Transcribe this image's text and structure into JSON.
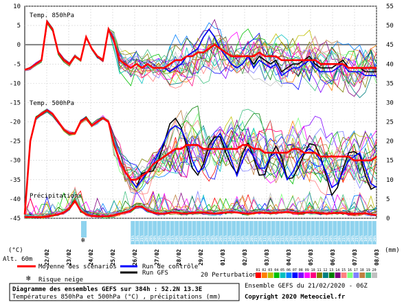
{
  "chart_data": {
    "type": "line",
    "title_line1": "Diagramme des ensembles GEFS sur 384h : 52.2N 13.3E",
    "title_line2": "Températures 850hPa et 500hPa (°C) , précipitations (mm)",
    "credit_run": "Ensemble GEFS du 21/02/2020 - 06Z",
    "copyright": "Copyright 2020 Meteociel.fr",
    "panel_labels": [
      "Temp. 850hPa",
      "Temp. 500hPa",
      "Précipitations"
    ],
    "left_unit": "(°C)",
    "altitude": "Alt. 60m",
    "right_unit": "(mm)",
    "y_left_ticks": [
      "10",
      "5",
      "0",
      "-5",
      "-10",
      "-15",
      "-20",
      "-25",
      "-30",
      "-35",
      "-40",
      "-45"
    ],
    "y_right_ticks": [
      "55",
      "50",
      "45",
      "40",
      "35",
      "30",
      "25",
      "20",
      "15",
      "10",
      "5",
      "0"
    ],
    "x_dates": [
      "22/02",
      "23/02",
      "24/02",
      "25/02",
      "26/02",
      "27/02",
      "28/02",
      "29/02",
      "01/03",
      "02/03",
      "03/03",
      "04/03",
      "05/03",
      "06/03",
      "07/03",
      "08/03"
    ],
    "legend": {
      "mean": "Moyenne des scénarios",
      "control": "Run de contrôle",
      "gfs": "Run GFS",
      "perturb": "20 Perturbations",
      "snow": "Risque neige"
    },
    "perturbation_ids": [
      "01",
      "02",
      "03",
      "04",
      "05",
      "06",
      "07",
      "08",
      "09",
      "10",
      "11",
      "12",
      "13",
      "14",
      "15",
      "16",
      "17",
      "18",
      "19",
      "20"
    ],
    "perturbation_colors": [
      "#ff0000",
      "#ff8000",
      "#c0c000",
      "#00c000",
      "#00c0c0",
      "#0080ff",
      "#0000ff",
      "#8000ff",
      "#ff00ff",
      "#ff0080",
      "#808000",
      "#008080",
      "#008000",
      "#800080",
      "#ff8080",
      "#80ff80",
      "#8080ff",
      "#c08040",
      "#40c080",
      "#c0c0c0"
    ],
    "snow_risk_pct": [
      "11%",
      "16%",
      "21%",
      "26%",
      "26%",
      "26%",
      "26%",
      "21%",
      "26%",
      "21%",
      "26%",
      "26%",
      "21%",
      "21%",
      "21%",
      "26%",
      "21%",
      "16%",
      "26%",
      "26%",
      "26%",
      "21%",
      "16%",
      "26%",
      "21%",
      "26%",
      "16%",
      "26%",
      "21%",
      "26%",
      "11%",
      "26%",
      "26%",
      "21%",
      "21%",
      "26%",
      "26%",
      "21%",
      "16%",
      "26%",
      "26%",
      "26%",
      "21%",
      "26%",
      "21%",
      "26%",
      "21%",
      "26%",
      "21%",
      "26%",
      "26%",
      "21%",
      "26%",
      "16%",
      "26%",
      "26%"
    ],
    "t850_mean": [
      -6.5,
      -6,
      -5,
      -4,
      6,
      4,
      -2,
      -4,
      -5,
      -3,
      -4,
      2,
      -1,
      -3,
      -4,
      4,
      1,
      -4,
      -5,
      -6,
      -5,
      -6,
      -5,
      -6,
      -6,
      -6,
      -5,
      -4,
      -4,
      -3,
      -3,
      -2,
      -2,
      -1,
      0,
      -1,
      -2,
      -3,
      -3,
      -3,
      -3,
      -3,
      -2,
      -3,
      -3,
      -3,
      -4,
      -4,
      -4,
      -4,
      -4,
      -4,
      -4,
      -5,
      -5,
      -5,
      -5,
      -5,
      -6,
      -6,
      -6,
      -6,
      -6,
      -6
    ],
    "t850_control": [
      -6.5,
      -6,
      -5,
      -4,
      6,
      4,
      -2,
      -4,
      -5,
      -3,
      -4,
      2,
      -1,
      -3,
      -4,
      4,
      1,
      -4,
      -5,
      -6,
      -5,
      -6,
      -5,
      -6,
      -6,
      -6,
      -7,
      -6,
      -5,
      -3,
      -2,
      -1,
      2,
      4,
      2,
      -1,
      -3,
      -5,
      -6,
      -5,
      -3,
      -5,
      -3,
      -4,
      -5,
      -4,
      -7,
      -6,
      -5,
      -5,
      -4,
      -3,
      -5,
      -6,
      -6,
      -6,
      -5,
      -4,
      -6,
      -6,
      -6,
      -7,
      -7,
      -7
    ],
    "t500_mean": [
      -44,
      -25,
      -19,
      -18,
      -17,
      -18,
      -20,
      -22,
      -23,
      -23,
      -20,
      -19,
      -21,
      -20,
      -19,
      -20,
      -26,
      -30,
      -33,
      -35,
      -35,
      -34,
      -33,
      -31,
      -30,
      -29,
      -28,
      -27,
      -27,
      -26,
      -26,
      -26,
      -27,
      -27,
      -27,
      -27,
      -27,
      -27,
      -27,
      -26,
      -26,
      -27,
      -27,
      -28,
      -28,
      -28,
      -28,
      -28,
      -27,
      -27,
      -28,
      -28,
      -28,
      -29,
      -29,
      -29,
      -29,
      -29,
      -29,
      -30,
      -30,
      -30,
      -30,
      -29
    ],
    "t500_control": [
      -44,
      -25,
      -19,
      -18,
      -17,
      -18,
      -20,
      -22,
      -23,
      -23,
      -20,
      -19,
      -21,
      -20,
      -19,
      -20,
      -26,
      -30,
      -33,
      -35,
      -37,
      -35,
      -33,
      -31,
      -28,
      -25,
      -22,
      -21,
      -22,
      -25,
      -30,
      -33,
      -32,
      -28,
      -25,
      -23,
      -26,
      -30,
      -34,
      -30,
      -27,
      -29,
      -32,
      -32,
      -29,
      -28,
      -31,
      -35,
      -33,
      -30,
      -28,
      -27,
      -28,
      -30,
      -33,
      -37,
      -36,
      -33,
      -30,
      -29,
      -28,
      -32,
      -36,
      -37
    ],
    "precip_mean": [
      0.3,
      0.3,
      0.3,
      0.3,
      0.5,
      0.7,
      1.0,
      1.5,
      2.5,
      4.5,
      2,
      1,
      0.6,
      0.5,
      0.5,
      0.5,
      0.8,
      1.2,
      1.5,
      2,
      3,
      3,
      2,
      1.5,
      1.2,
      1.2,
      1.4,
      1.5,
      1.3,
      1.2,
      1.4,
      1.5,
      1.5,
      1.3,
      1.2,
      1.3,
      1.5,
      1.6,
      1.5,
      1.3,
      1.2,
      1.3,
      1.5,
      1.4,
      1.3,
      1.4,
      1.5,
      1.6,
      1.4,
      1.3,
      1.4,
      1.5,
      1.5,
      1.3,
      1.2,
      1.3,
      1.4,
      1.3,
      1.2,
      1.1,
      1.2,
      1.3,
      1.0,
      0.8
    ]
  }
}
